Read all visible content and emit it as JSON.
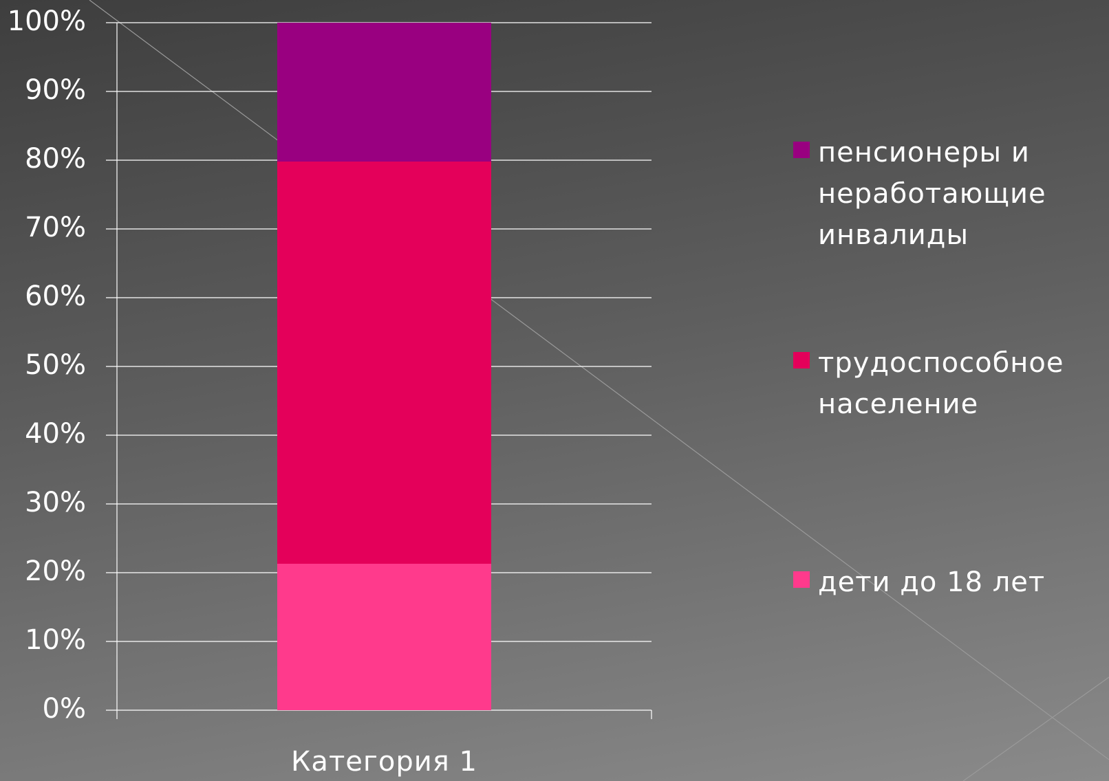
{
  "chart_data": {
    "type": "stacked_bar",
    "categories": [
      "Категория 1"
    ],
    "series": [
      {
        "name": "дети до 18 лет",
        "color": "#ff3a8c",
        "values": [
          21.3
        ]
      },
      {
        "name": "трудоспособное население",
        "color": "#e4005a",
        "values": [
          58.5
        ]
      },
      {
        "name": "пенсионеры и неработающие инвалиды",
        "color": "#990080",
        "values": [
          20.2
        ]
      }
    ],
    "ylim": [
      0,
      100
    ],
    "yticks": [
      {
        "value": 0,
        "label": "0%"
      },
      {
        "value": 10,
        "label": "10%"
      },
      {
        "value": 20,
        "label": "20%"
      },
      {
        "value": 30,
        "label": "30%"
      },
      {
        "value": 40,
        "label": "40%"
      },
      {
        "value": 50,
        "label": "50%"
      },
      {
        "value": 60,
        "label": "60%"
      },
      {
        "value": 70,
        "label": "70%"
      },
      {
        "value": 80,
        "label": "80%"
      },
      {
        "value": 90,
        "label": "90%"
      },
      {
        "value": 100,
        "label": "100%"
      }
    ],
    "grid": true,
    "legend": "right"
  }
}
